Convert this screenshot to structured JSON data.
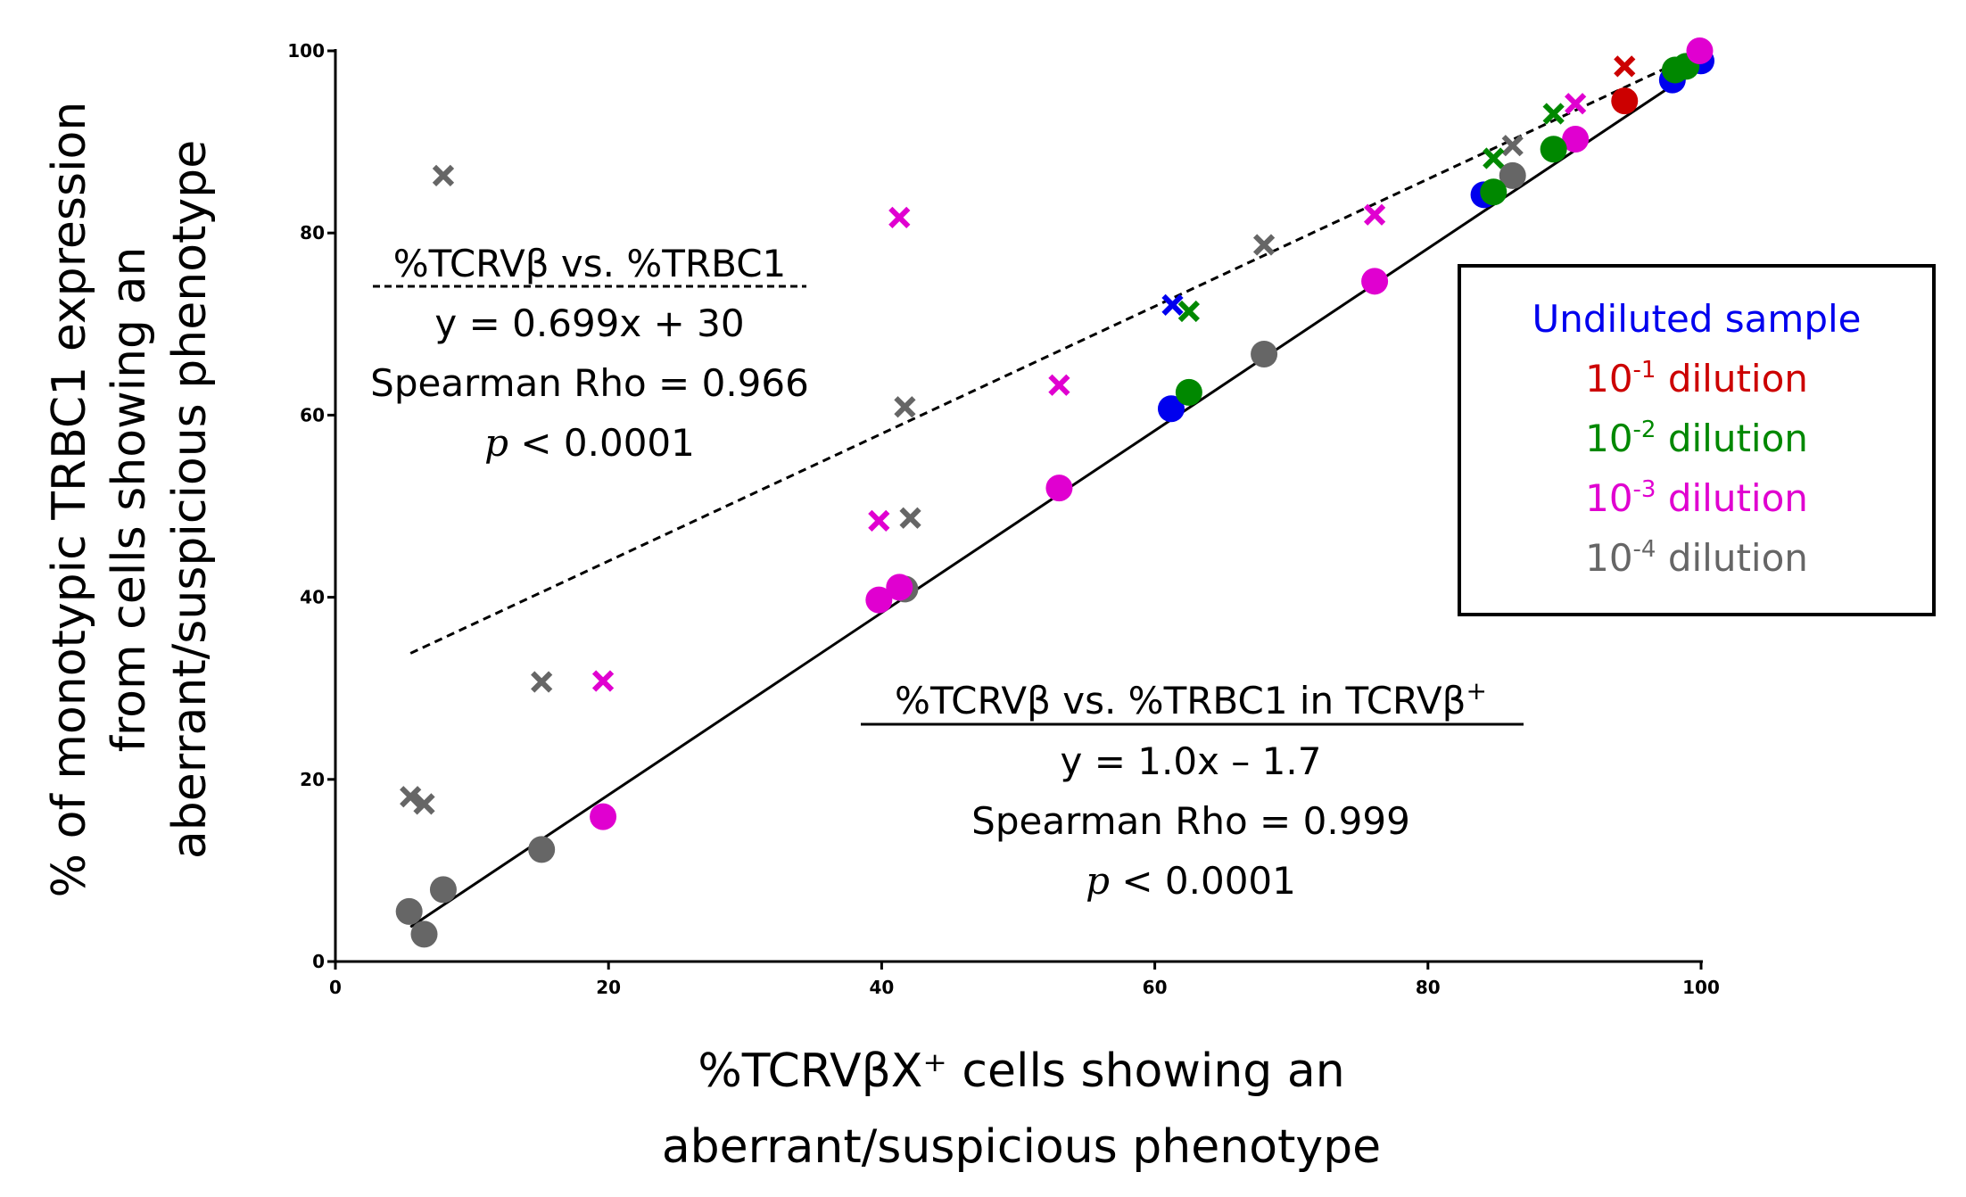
{
  "chart_data": {
    "type": "scatter",
    "xlabel_lines": [
      "%TCRVβX⁺ cells showing an",
      "aberrant/suspicious phenotype"
    ],
    "ylabel_lines": [
      "% of monotypic TRBC1 expression",
      "from cells showing an",
      "aberrant/suspicious phenotype"
    ],
    "xlim": [
      0,
      100
    ],
    "ylim": [
      0,
      100
    ],
    "xticks": [
      "0",
      "20",
      "40",
      "60",
      "80",
      "100"
    ],
    "yticks": [
      "0",
      "20",
      "40",
      "60",
      "80",
      "100"
    ],
    "grid": false,
    "legend_position": "right",
    "colors": {
      "undiluted": "#0000ee",
      "d1": "#cc0000",
      "d2": "#008800",
      "d3": "#e000d0",
      "d4": "#666666"
    },
    "legend": [
      {
        "key": "undiluted",
        "label": "Undiluted sample",
        "base": "",
        "exp": ""
      },
      {
        "key": "d1",
        "label": " dilution",
        "base": "10",
        "exp": "-1"
      },
      {
        "key": "d2",
        "label": " dilution",
        "base": "10",
        "exp": "-2"
      },
      {
        "key": "d3",
        "label": " dilution",
        "base": "10",
        "exp": "-3"
      },
      {
        "key": "d4",
        "label": " dilution",
        "base": "10",
        "exp": "-4"
      }
    ],
    "series": [
      {
        "name": "%TCRVβ vs. %TRBC1",
        "marker": "x",
        "points": [
          {
            "g": "d4",
            "x": 7.9,
            "y": 86.3
          },
          {
            "g": "d4",
            "x": 15.1,
            "y": 30.7
          },
          {
            "g": "d4",
            "x": 5.5,
            "y": 18.1
          },
          {
            "g": "d4",
            "x": 6.5,
            "y": 17.3
          },
          {
            "g": "d4",
            "x": 41.7,
            "y": 60.9
          },
          {
            "g": "d4",
            "x": 42.1,
            "y": 48.7
          },
          {
            "g": "d4",
            "x": 68.0,
            "y": 78.7
          },
          {
            "g": "d4",
            "x": 86.2,
            "y": 89.6
          },
          {
            "g": "d3",
            "x": 41.3,
            "y": 81.7
          },
          {
            "g": "d3",
            "x": 19.6,
            "y": 30.8
          },
          {
            "g": "d3",
            "x": 39.8,
            "y": 48.4
          },
          {
            "g": "d3",
            "x": 53.0,
            "y": 63.3
          },
          {
            "g": "d3",
            "x": 76.1,
            "y": 82.0
          },
          {
            "g": "d3",
            "x": 90.8,
            "y": 94.2
          },
          {
            "g": "undiluted",
            "x": 61.3,
            "y": 72.1
          },
          {
            "g": "d2",
            "x": 62.5,
            "y": 71.4
          },
          {
            "g": "d2",
            "x": 84.8,
            "y": 88.2
          },
          {
            "g": "d2",
            "x": 89.2,
            "y": 93.1
          },
          {
            "g": "d1",
            "x": 94.4,
            "y": 98.3
          }
        ]
      },
      {
        "name": "%TCRVβ vs. %TRBC1 in TCRVβ+",
        "marker": "circle",
        "points": [
          {
            "g": "d4",
            "x": 5.4,
            "y": 5.5
          },
          {
            "g": "d4",
            "x": 6.5,
            "y": 3.0
          },
          {
            "g": "d4",
            "x": 7.9,
            "y": 7.9
          },
          {
            "g": "d4",
            "x": 15.1,
            "y": 12.3
          },
          {
            "g": "d4",
            "x": 41.7,
            "y": 40.9
          },
          {
            "g": "d4",
            "x": 68.0,
            "y": 66.7
          },
          {
            "g": "d4",
            "x": 86.2,
            "y": 86.3
          },
          {
            "g": "d3",
            "x": 19.6,
            "y": 15.9
          },
          {
            "g": "d3",
            "x": 39.8,
            "y": 39.7
          },
          {
            "g": "d3",
            "x": 41.3,
            "y": 41.1
          },
          {
            "g": "d3",
            "x": 53.0,
            "y": 52.0
          },
          {
            "g": "d3",
            "x": 76.1,
            "y": 74.7
          },
          {
            "g": "d3",
            "x": 90.8,
            "y": 90.3
          },
          {
            "g": "undiluted",
            "x": 61.2,
            "y": 60.7
          },
          {
            "g": "undiluted",
            "x": 84.1,
            "y": 84.2
          },
          {
            "g": "undiluted",
            "x": 97.9,
            "y": 96.8
          },
          {
            "g": "undiluted",
            "x": 100.0,
            "y": 98.9
          },
          {
            "g": "d2",
            "x": 62.5,
            "y": 62.5
          },
          {
            "g": "d2",
            "x": 84.8,
            "y": 84.5
          },
          {
            "g": "d2",
            "x": 89.2,
            "y": 89.2
          },
          {
            "g": "d2",
            "x": 98.1,
            "y": 97.9
          },
          {
            "g": "d2",
            "x": 98.9,
            "y": 98.3
          },
          {
            "g": "d1",
            "x": 94.4,
            "y": 94.5
          },
          {
            "g": "d3",
            "x": 99.9,
            "y": 100.0
          }
        ]
      }
    ],
    "fits": [
      {
        "name": "dashed",
        "slope": 0.699,
        "intercept": 30,
        "x_range": [
          5.5,
          100
        ]
      },
      {
        "name": "solid",
        "slope": 1.0,
        "intercept": -1.7,
        "x_range": [
          5.5,
          100
        ]
      }
    ],
    "annotations": {
      "upper": {
        "title": "%TCRVβ vs. %TRBC1",
        "eq": "y = 0.699x + 30",
        "rho": "Spearman Rho = 0.966",
        "p_sym": "p",
        "p_val": " < 0.0001"
      },
      "lower": {
        "title": "%TCRVβ vs. %TRBC1 in TCRVβ",
        "title_sup": "+",
        "eq": "y = 1.0x – 1.7",
        "rho": "Spearman Rho = 0.999",
        "p_sym": "p",
        "p_val": " < 0.0001"
      }
    }
  }
}
